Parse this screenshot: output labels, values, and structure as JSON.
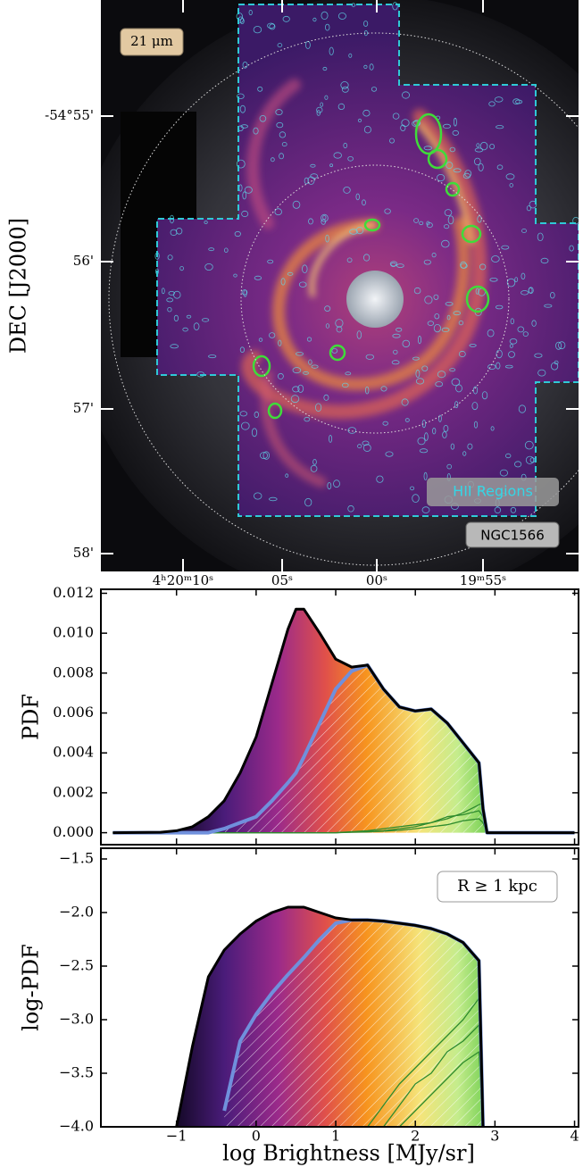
{
  "chart_data": [
    {
      "type": "image",
      "ylabel": "DEC [J2000]",
      "yticklabels": [
        "-54°55'",
        "56'",
        "57'",
        "58'"
      ],
      "xticklabels": [
        "4ʰ20ᵐ10ˢ",
        "05ˢ",
        "00ˢ",
        "19ᵐ55ˢ"
      ],
      "annotations": [
        "21 μm",
        "HII Regions",
        "NGC1566"
      ]
    },
    {
      "type": "area",
      "ylabel": "PDF",
      "x": [
        -1.8,
        -1.2,
        -1.0,
        -0.8,
        -0.6,
        -0.4,
        -0.2,
        0,
        0.2,
        0.4,
        0.5,
        0.6,
        0.8,
        1.0,
        1.2,
        1.4,
        1.6,
        1.8,
        2.0,
        2.2,
        2.4,
        2.6,
        2.8,
        2.85,
        2.9,
        3.2,
        4.0
      ],
      "series": [
        {
          "color": "#000000",
          "fill": "gradient",
          "values": [
            0,
            2e-05,
            0.0001,
            0.0003,
            0.0008,
            0.0016,
            0.003,
            0.0048,
            0.0075,
            0.0102,
            0.0112,
            0.0112,
            0.01,
            0.0087,
            0.0083,
            0.0084,
            0.0072,
            0.0063,
            0.0061,
            0.0062,
            0.0055,
            0.0045,
            0.0035,
            0.0012,
            0,
            0,
            0
          ]
        },
        {
          "color": "#7090dc",
          "fill": "hatch",
          "values": [
            0,
            0,
            0,
            0,
            0,
            0.0002,
            0.0005,
            0.0008,
            0.0016,
            0.0025,
            0.003,
            0.0038,
            0.0055,
            0.0072,
            0.0081,
            0.0084,
            0.0072,
            0.0063,
            0.0061,
            0.0062,
            0.0055,
            0.0045,
            0.0035,
            0.0012,
            0,
            0,
            0
          ]
        },
        {
          "color": "#2e8b2e",
          "values": [
            0,
            0,
            0,
            0,
            0,
            0,
            0,
            0,
            0,
            0,
            0,
            0,
            0,
            0,
            5e-05,
            0.0001,
            0.0002,
            0.0003,
            0.0004,
            0.0005,
            0.0007,
            0.001,
            0.0014,
            0.0015,
            0,
            0,
            0
          ]
        },
        {
          "color": "#2e8b2e",
          "values": [
            0,
            0,
            0,
            0,
            0,
            0,
            0,
            0,
            0,
            0,
            0,
            0,
            0,
            0,
            3e-05,
            6e-05,
            0.0001,
            0.0002,
            0.0003,
            0.0005,
            0.0008,
            0.0009,
            0.0011,
            0.0008,
            0,
            0,
            0
          ]
        },
        {
          "color": "#2e8b2e",
          "values": [
            0,
            0,
            0,
            0,
            0,
            0,
            0,
            0,
            0,
            0,
            0,
            0,
            0,
            0,
            2e-05,
            4e-05,
            8e-05,
            0.00012,
            0.0002,
            0.0003,
            0.0004,
            0.0006,
            0.0007,
            0.0005,
            0,
            0,
            0
          ]
        }
      ],
      "xlim": [
        -1.95,
        4.05
      ],
      "ylim": [
        -0.0006,
        0.0122
      ],
      "xticks": [
        -1,
        0,
        1,
        2,
        3,
        4
      ],
      "show_xtick_labels": false,
      "yticks": [
        {
          "value": 0,
          "label": "0.000"
        },
        0.002,
        0.004,
        0.006,
        0.008,
        {
          "value": 0.01,
          "label": "0.010"
        },
        0.012
      ]
    },
    {
      "type": "area",
      "ylabel": "log-PDF",
      "xlabel": "log Brightness [MJy/sr]",
      "annotation": "R ≥ 1 kpc",
      "x": [
        -1.0,
        -0.8,
        -0.6,
        -0.4,
        -0.2,
        0,
        0.2,
        0.4,
        0.6,
        0.8,
        1.0,
        1.2,
        1.4,
        1.6,
        1.8,
        2.0,
        2.2,
        2.4,
        2.6,
        2.8,
        2.85
      ],
      "series": [
        {
          "color": "#000000",
          "fill": "gradient",
          "values": [
            -4.0,
            -3.25,
            -2.6,
            -2.35,
            -2.2,
            -2.08,
            -2.0,
            -1.95,
            -1.95,
            -2.0,
            -2.05,
            -2.07,
            -2.07,
            -2.08,
            -2.1,
            -2.12,
            -2.15,
            -2.2,
            -2.28,
            -2.45,
            -4.0
          ]
        },
        {
          "color": "#7090dc",
          "fill": "hatch",
          "values": [
            null,
            null,
            null,
            -3.85,
            -3.2,
            -2.95,
            -2.75,
            -2.58,
            -2.42,
            -2.25,
            -2.1,
            -2.07,
            -2.07,
            -2.08,
            -2.1,
            -2.12,
            -2.15,
            -2.2,
            -2.28,
            -2.45,
            -4.0
          ]
        },
        {
          "color": "#2e8b2e",
          "values": [
            null,
            null,
            null,
            null,
            null,
            null,
            null,
            null,
            null,
            null,
            null,
            null,
            -4.0,
            -3.8,
            -3.6,
            -3.45,
            -3.3,
            -3.15,
            -3.0,
            -2.8,
            -4.0
          ]
        },
        {
          "color": "#2e8b2e",
          "values": [
            null,
            null,
            null,
            null,
            null,
            null,
            null,
            null,
            null,
            null,
            null,
            null,
            null,
            -4.0,
            -3.8,
            -3.6,
            -3.5,
            -3.3,
            -3.2,
            -3.05,
            -4.0
          ]
        },
        {
          "color": "#2e8b2e",
          "values": [
            null,
            null,
            null,
            null,
            null,
            null,
            null,
            null,
            null,
            null,
            null,
            null,
            null,
            null,
            -4.0,
            -3.85,
            -3.7,
            -3.55,
            -3.4,
            -3.3,
            -4.0
          ]
        }
      ],
      "xlim": [
        -1.95,
        4.05
      ],
      "ylim": [
        -4.0,
        -1.4
      ],
      "xticks": [
        {
          "value": -1,
          "label": "−1"
        },
        0,
        1,
        2,
        3,
        4
      ],
      "show_xtick_labels": true,
      "yticks": [
        {
          "value": -4.0,
          "label": "−4.0"
        },
        {
          "value": -3.5,
          "label": "−3.5"
        },
        {
          "value": -3.0,
          "label": "−3.0"
        },
        {
          "value": -2.5,
          "label": "−2.5"
        },
        {
          "value": -2.0,
          "label": "−2.0"
        },
        {
          "value": -1.5,
          "label": "−1.5"
        }
      ]
    }
  ]
}
